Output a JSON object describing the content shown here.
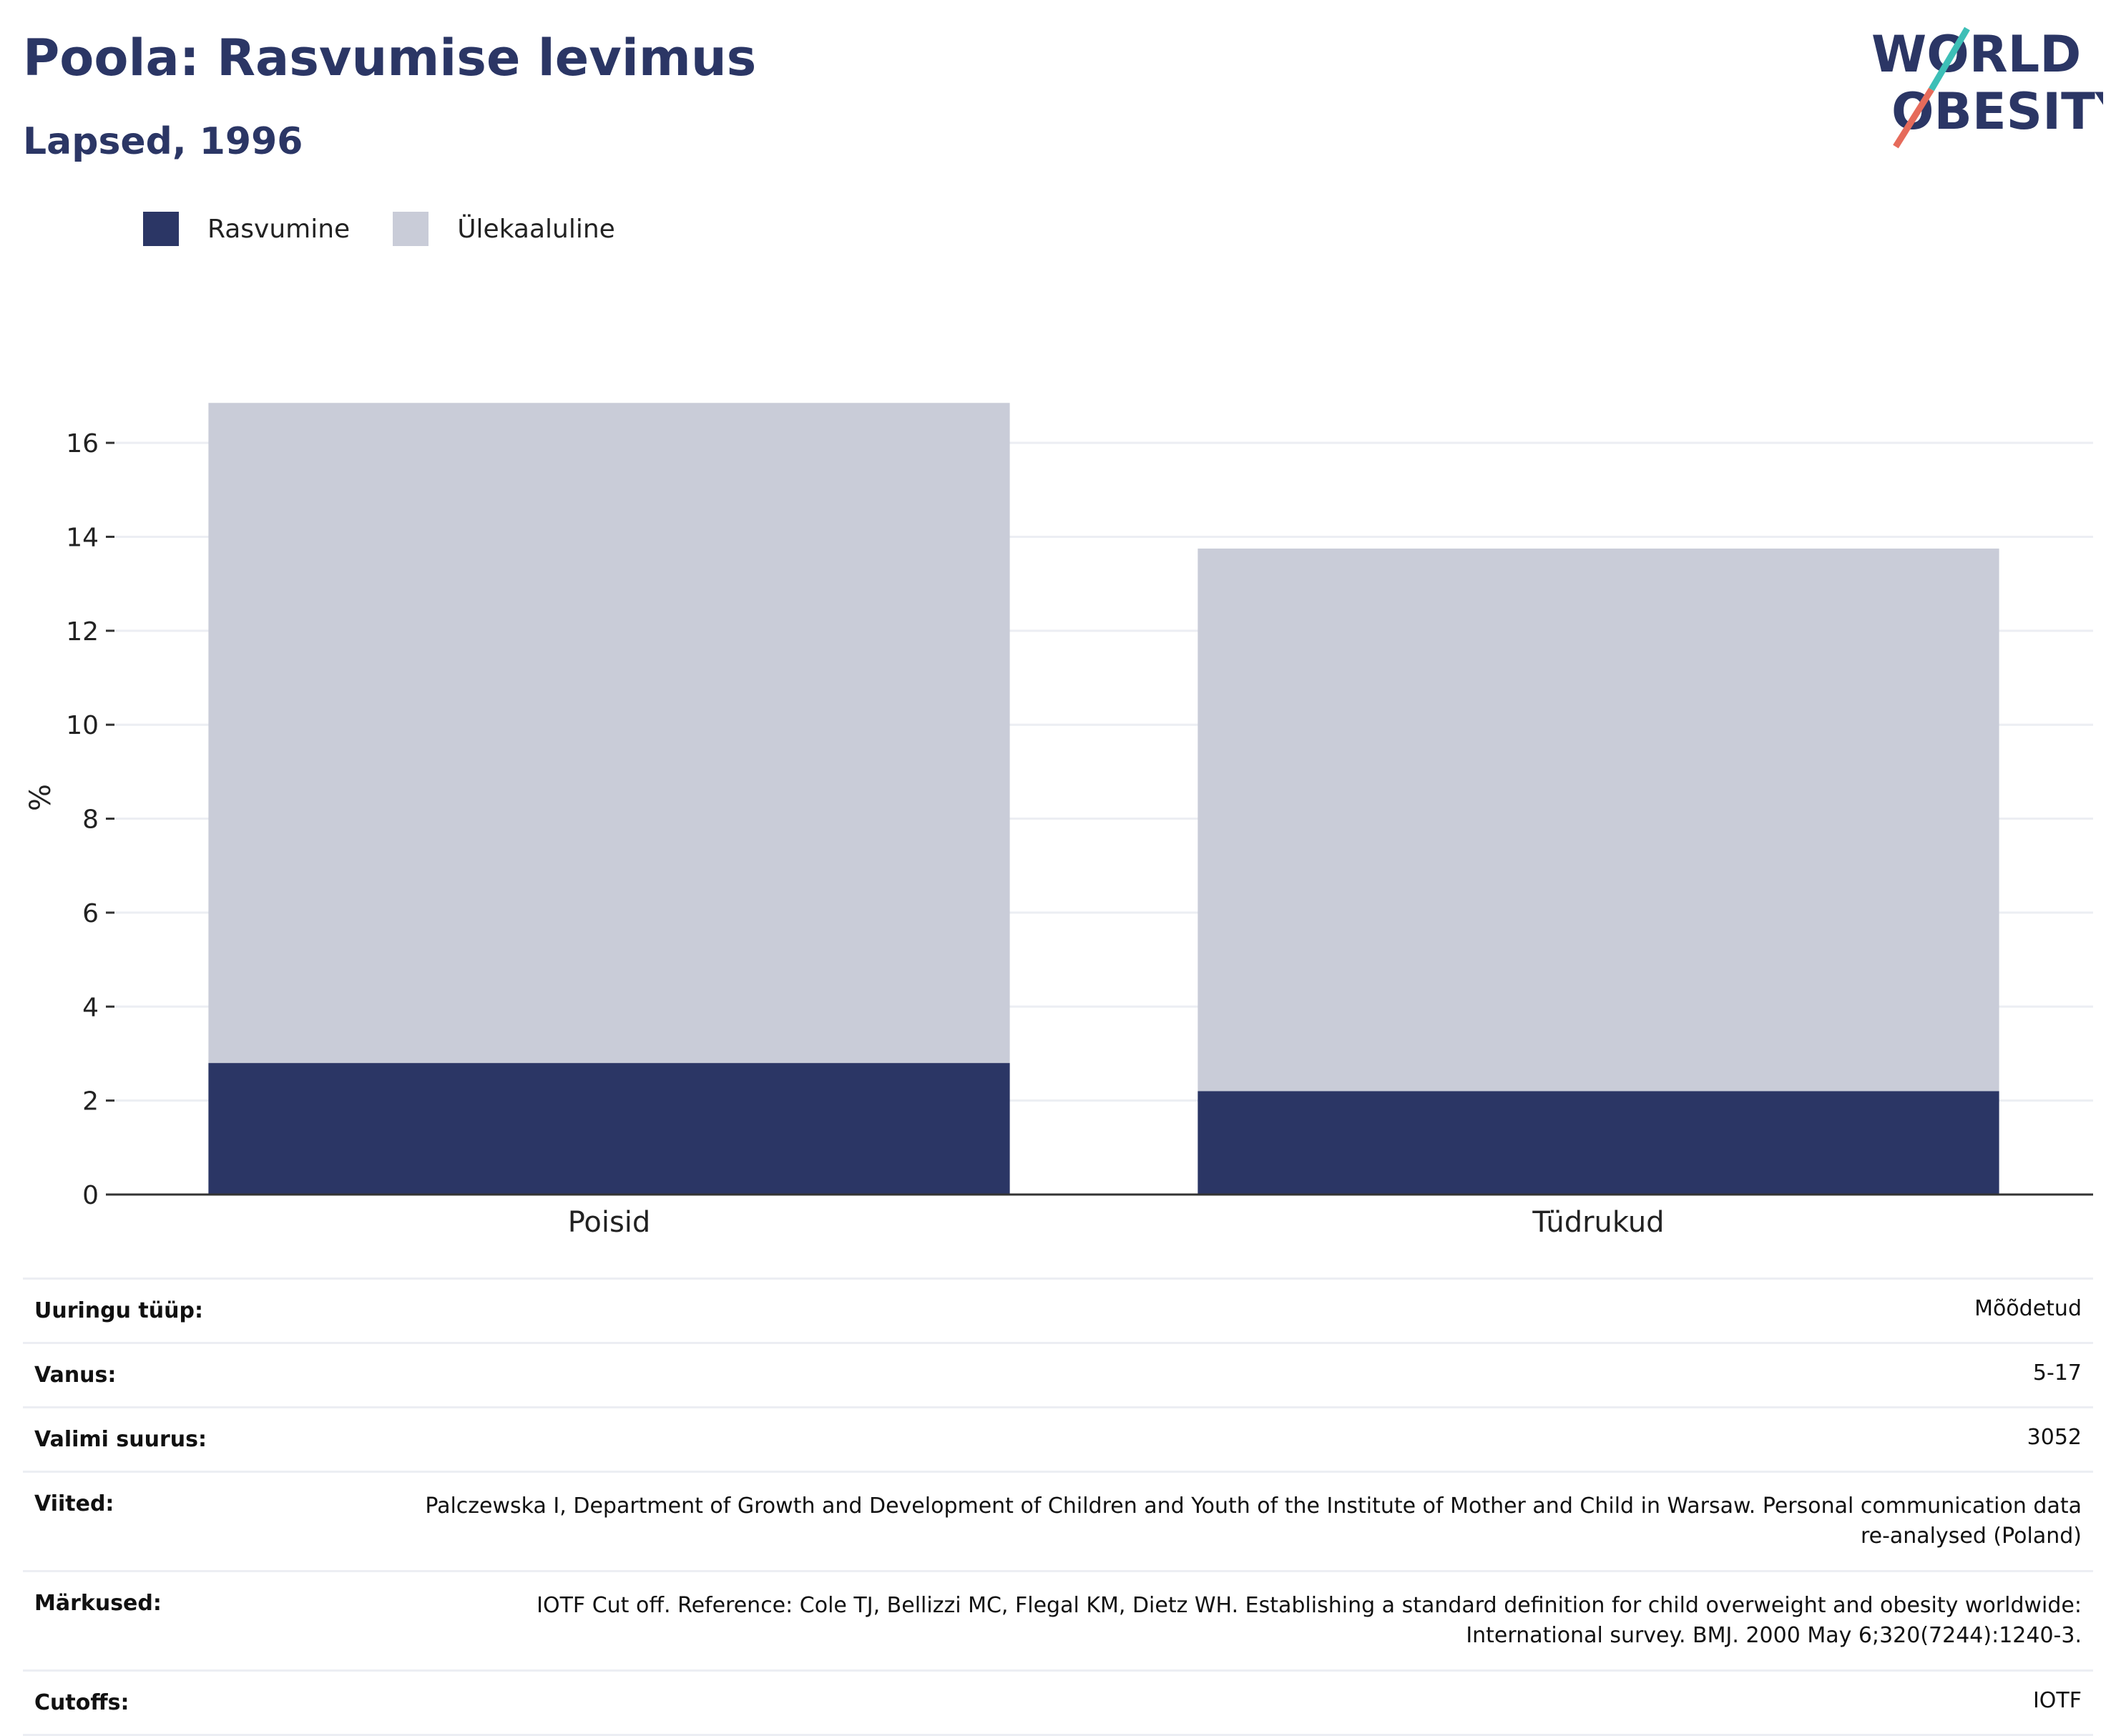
{
  "header": {
    "title": "Poola: Rasvumise levimus",
    "subtitle": "Lapsed, 1996"
  },
  "logo": {
    "line1": "WORLD",
    "line2": "OBESITY"
  },
  "colors": {
    "obesity": "#2b3665",
    "overweight": "#c9ccd8",
    "axis": "#333333",
    "grid": "#eceef3"
  },
  "legend": [
    {
      "label": "Rasvumine",
      "color": "#2b3665"
    },
    {
      "label": "Ülekaaluline",
      "color": "#c9ccd8"
    }
  ],
  "chart_data": {
    "type": "bar",
    "stacked": true,
    "categories": [
      "Poisid",
      "Tüdrukud"
    ],
    "series": [
      {
        "name": "Rasvumine",
        "values": [
          2.8,
          2.2
        ]
      },
      {
        "name": "Ülekaaluline",
        "values": [
          14.05,
          11.55
        ]
      }
    ],
    "ylabel": "%",
    "ylim": [
      0,
      16.9
    ],
    "yticks": [
      0,
      2,
      4,
      6,
      8,
      10,
      12,
      14,
      16
    ],
    "grid": true,
    "legend_position": "top-left"
  },
  "meta": [
    {
      "key": "Uuringu tüüp:",
      "value": "Mõõdetud"
    },
    {
      "key": "Vanus:",
      "value": "5-17"
    },
    {
      "key": "Valimi suurus:",
      "value": "3052"
    },
    {
      "key": "Viited:",
      "value": "Palczewska I, Department of Growth and Development of Children and Youth of the Institute of Mother and Child in Warsaw. Personal communication data re-analysed (Poland)"
    },
    {
      "key": "Märkused:",
      "value": "IOTF Cut off. Reference: Cole TJ, Bellizzi MC, Flegal KM, Dietz WH. Establishing a standard definition for child overweight and obesity worldwide: International survey. BMJ. 2000 May 6;320(7244):1240-3."
    },
    {
      "key": "Cutoffs:",
      "value": "IOTF"
    }
  ]
}
